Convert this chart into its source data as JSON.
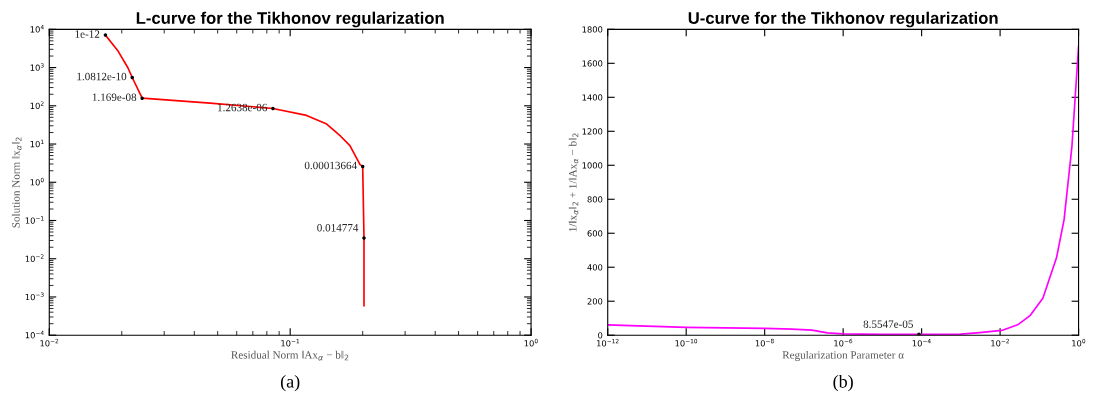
{
  "chart_data": [
    {
      "type": "line",
      "title": "L-curve for the Tikhonov regularization",
      "xlabel": "Residual Norm ‖Ax$_{α}$ − b‖$_{2}$",
      "ylabel": "Solution Norm ‖x$_{α}$‖$_{2}$",
      "log": "xy",
      "grid": false,
      "legend": false,
      "xlim": [
        0.01,
        1
      ],
      "ylim": [
        0.0001,
        10000
      ],
      "xticks": [
        {
          "value": 0.01,
          "label": "10$^{−2}$"
        },
        {
          "value": 0.1,
          "label": "10$^{−1}$"
        },
        {
          "value": 1,
          "label": "10$^{0}$"
        }
      ],
      "yticks": [
        {
          "value": 0.0001,
          "label": "10$^{−4}$"
        },
        {
          "value": 0.001,
          "label": "10$^{−3}$"
        },
        {
          "value": 0.01,
          "label": "10$^{−2}$"
        },
        {
          "value": 0.1,
          "label": "10$^{−1}$"
        },
        {
          "value": 1,
          "label": "10$^{0}$"
        },
        {
          "value": 10,
          "label": "10$^{1}$"
        },
        {
          "value": 100,
          "label": "10$^{2}$"
        },
        {
          "value": 1000,
          "label": "10$^{3}$"
        },
        {
          "value": 10000,
          "label": "10$^{4}$"
        }
      ],
      "series": [
        {
          "color": "#ff0000",
          "x": [
            0.0171,
            0.0193,
            0.0212,
            0.0221,
            0.0243,
            0.0465,
            0.0848,
            0.117,
            0.141,
            0.162,
            0.177,
            0.195,
            0.2,
            0.2025,
            0.2025
          ],
          "values": [
            7100,
            2700,
            990,
            550,
            158,
            118,
            85,
            56,
            34,
            16,
            9.1,
            2.9,
            2.6,
            0.035,
            0.00059
          ]
        }
      ],
      "annotations": [
        {
          "text": "1e-12",
          "x": 0.0171,
          "y": 7100
        },
        {
          "text": "1.0812e-10",
          "x": 0.0221,
          "y": 550
        },
        {
          "text": "1.169e-08",
          "x": 0.0243,
          "y": 158
        },
        {
          "text": "1.2638e-06",
          "x": 0.0848,
          "y": 85
        },
        {
          "text": "0.00013664",
          "x": 0.2,
          "y": 2.6
        },
        {
          "text": "0.014774",
          "x": 0.2025,
          "y": 0.035
        },
        "(a)"
      ]
    },
    {
      "type": "line",
      "title": "U-curve for the Tikhonov regularization",
      "xlabel": "Regularization Parameter α",
      "ylabel": "1/‖x$_{α}$‖$_{2}$ + 1/‖Ax$_{α}$ − b‖$_{2}$",
      "log": "x",
      "grid": false,
      "legend": false,
      "xlim": [
        1e-12,
        1
      ],
      "ylim": [
        0,
        1800
      ],
      "xticks": [
        {
          "value": 1e-12,
          "label": "10$^{−12}$"
        },
        {
          "value": 1e-10,
          "label": "10$^{−10}$"
        },
        {
          "value": 1e-08,
          "label": "10$^{−8}$"
        },
        {
          "value": 1e-06,
          "label": "10$^{−6}$"
        },
        {
          "value": 0.0001,
          "label": "10$^{−4}$"
        },
        {
          "value": 0.01,
          "label": "10$^{−2}$"
        },
        {
          "value": 1,
          "label": "10$^{0}$"
        }
      ],
      "yticks": [
        0,
        200,
        400,
        600,
        800,
        1000,
        1200,
        1400,
        1600,
        1800
      ],
      "series": [
        {
          "color": "#ff00ff",
          "x": [
            1e-12,
            1e-10,
            1e-08,
            5e-08,
            1.6e-07,
            4e-07,
            1e-06,
            1e-05,
            8.5547e-05,
            0.001,
            0.003,
            0.011,
            0.028,
            0.059,
            0.123,
            0.275,
            0.427,
            0.676,
            1
          ],
          "values": [
            61,
            46,
            40,
            36,
            30,
            14,
            8,
            5,
            5,
            6,
            15,
            28,
            61,
            117,
            217,
            457,
            680,
            1109,
            1700
          ]
        }
      ],
      "annotations": [
        {
          "text": "8.5547e-05",
          "x": 8.5547e-05,
          "y": 5
        },
        "(b)"
      ]
    }
  ]
}
